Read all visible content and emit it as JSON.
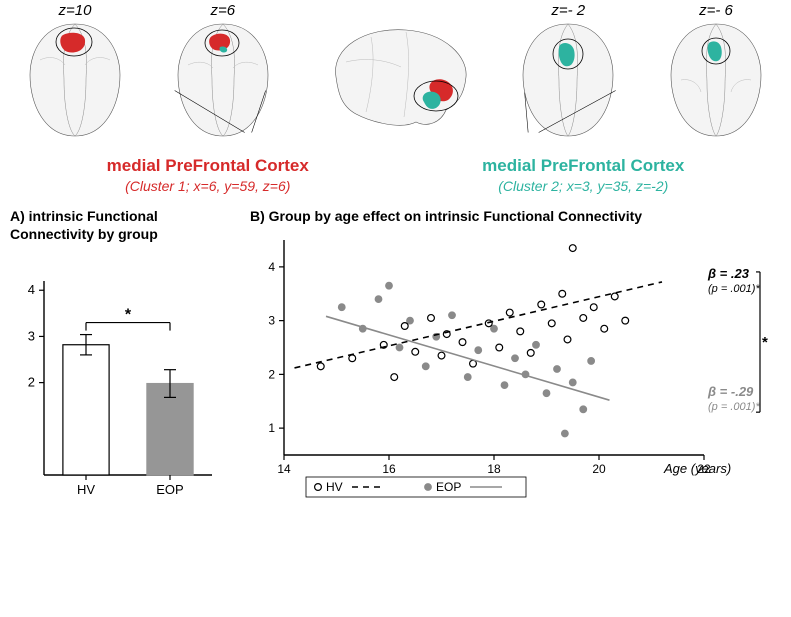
{
  "top": {
    "slices": [
      {
        "z": "z=10",
        "cluster": 1
      },
      {
        "z": "z=6",
        "cluster": 1
      },
      {
        "z": "",
        "cluster": 0
      },
      {
        "z": "z=- 2",
        "cluster": 2
      },
      {
        "z": "z=- 6",
        "cluster": 2
      }
    ]
  },
  "clusters": {
    "c1": {
      "title": "medial PreFrontal Cortex",
      "sub": "(Cluster 1; x=6, y=59, z=6)",
      "color": "#d62a2a"
    },
    "c2": {
      "title": "medial PreFrontal Cortex",
      "sub": "(Cluster 2; x=3, y=35, z=-2)",
      "color": "#2db3a0"
    }
  },
  "panelA": {
    "title": "A) intrinsic Functional Connectivity by group",
    "type": "bar",
    "categories": [
      "HV",
      "EOP"
    ],
    "values": [
      2.82,
      1.98
    ],
    "errors": [
      0.22,
      0.3
    ],
    "bar_fill": [
      "#ffffff",
      "#969696"
    ],
    "bar_stroke": [
      "#000000",
      "#969696"
    ],
    "ylim": [
      0,
      4.2
    ],
    "yticks": [
      2,
      3,
      4
    ],
    "bar_width": 0.55,
    "sig_marker": "*",
    "axis_color": "#000000",
    "background": "#ffffff"
  },
  "panelB": {
    "title": "B) Group by age effect on intrinsic Functional Connectivity",
    "type": "scatter",
    "xlim": [
      14,
      22
    ],
    "xticks": [
      14,
      16,
      18,
      20,
      22
    ],
    "ylim": [
      0.5,
      4.5
    ],
    "yticks": [
      1,
      2,
      3,
      4
    ],
    "series": {
      "HV": {
        "marker": "open-circle",
        "marker_color": "#000000",
        "marker_fill": "#ffffff",
        "line_style": "dashed",
        "line_color": "#000000",
        "beta": "β = .23",
        "p": "(p = .001)*",
        "label_color": "#000000",
        "points": [
          [
            14.7,
            2.15
          ],
          [
            15.3,
            2.3
          ],
          [
            15.9,
            2.55
          ],
          [
            16.1,
            1.95
          ],
          [
            16.3,
            2.9
          ],
          [
            16.5,
            2.42
          ],
          [
            16.8,
            3.05
          ],
          [
            17.0,
            2.35
          ],
          [
            17.1,
            2.75
          ],
          [
            17.4,
            2.6
          ],
          [
            17.6,
            2.2
          ],
          [
            17.9,
            2.95
          ],
          [
            18.1,
            2.5
          ],
          [
            18.3,
            3.15
          ],
          [
            18.5,
            2.8
          ],
          [
            18.7,
            2.4
          ],
          [
            18.9,
            3.3
          ],
          [
            19.1,
            2.95
          ],
          [
            19.3,
            3.5
          ],
          [
            19.4,
            2.65
          ],
          [
            19.5,
            4.35
          ],
          [
            19.7,
            3.05
          ],
          [
            19.9,
            3.25
          ],
          [
            20.1,
            2.85
          ],
          [
            20.3,
            3.45
          ],
          [
            20.5,
            3.0
          ]
        ],
        "fit": {
          "x1": 14.2,
          "y1": 2.12,
          "x2": 21.2,
          "y2": 3.72
        }
      },
      "EOP": {
        "marker": "filled-circle",
        "marker_color": "#8a8a8a",
        "marker_fill": "#8a8a8a",
        "line_style": "solid",
        "line_color": "#8a8a8a",
        "beta": "β = -.29",
        "p": "(p = .001)*",
        "label_color": "#8a8a8a",
        "points": [
          [
            15.1,
            3.25
          ],
          [
            15.5,
            2.85
          ],
          [
            15.8,
            3.4
          ],
          [
            16.0,
            3.65
          ],
          [
            16.2,
            2.5
          ],
          [
            16.4,
            3.0
          ],
          [
            16.7,
            2.15
          ],
          [
            16.9,
            2.7
          ],
          [
            17.2,
            3.1
          ],
          [
            17.5,
            1.95
          ],
          [
            17.7,
            2.45
          ],
          [
            18.0,
            2.85
          ],
          [
            18.2,
            1.8
          ],
          [
            18.4,
            2.3
          ],
          [
            18.6,
            2.0
          ],
          [
            18.8,
            2.55
          ],
          [
            19.0,
            1.65
          ],
          [
            19.2,
            2.1
          ],
          [
            19.35,
            0.9
          ],
          [
            19.5,
            1.85
          ],
          [
            19.7,
            1.35
          ],
          [
            19.85,
            2.25
          ]
        ],
        "fit": {
          "x1": 14.8,
          "y1": 3.08,
          "x2": 20.2,
          "y2": 1.52
        }
      }
    },
    "bracket_sig": "*",
    "xlabel": "Age (years)",
    "legend": {
      "HV": "HV",
      "EOP": "EOP"
    },
    "axis_color": "#000000",
    "background": "#ffffff",
    "marker_radius": 3.4
  }
}
